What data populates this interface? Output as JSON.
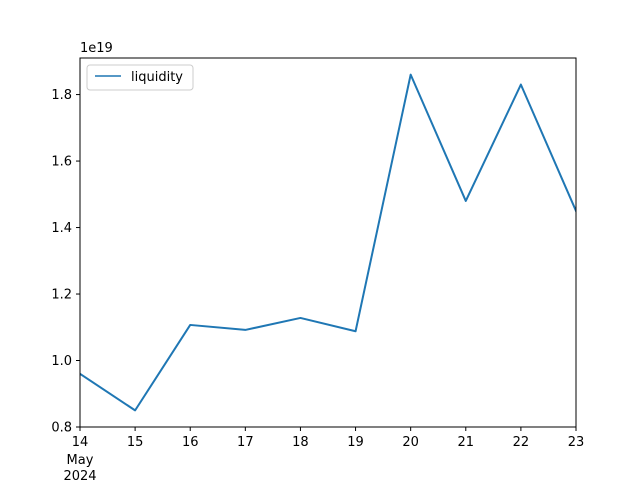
{
  "chart_data": {
    "type": "line",
    "title": "",
    "xlabel": "",
    "ylabel": "",
    "offset_label": "1e19",
    "x_ticks": [
      "14",
      "15",
      "16",
      "17",
      "18",
      "19",
      "20",
      "21",
      "22",
      "23"
    ],
    "x_sub_labels": [
      "May",
      "2024"
    ],
    "y_ticks": [
      "0.8",
      "1.0",
      "1.2",
      "1.4",
      "1.6",
      "1.8"
    ],
    "xlim": [
      "2024-05-14",
      "2024-05-23"
    ],
    "ylim": [
      0.8,
      1.91
    ],
    "y_scale": "1e19",
    "x": [
      "2024-05-14",
      "2024-05-15",
      "2024-05-16",
      "2024-05-17",
      "2024-05-18",
      "2024-05-19",
      "2024-05-20",
      "2024-05-21",
      "2024-05-22",
      "2024-05-23"
    ],
    "series": [
      {
        "name": "liquidity",
        "color": "#1f77b4",
        "values": [
          0.96,
          0.85,
          1.107,
          1.092,
          1.128,
          1.088,
          1.86,
          1.48,
          1.83,
          1.45
        ]
      }
    ],
    "legend": {
      "placement": "upper-left",
      "entries": [
        "liquidity"
      ]
    },
    "grid": false
  }
}
